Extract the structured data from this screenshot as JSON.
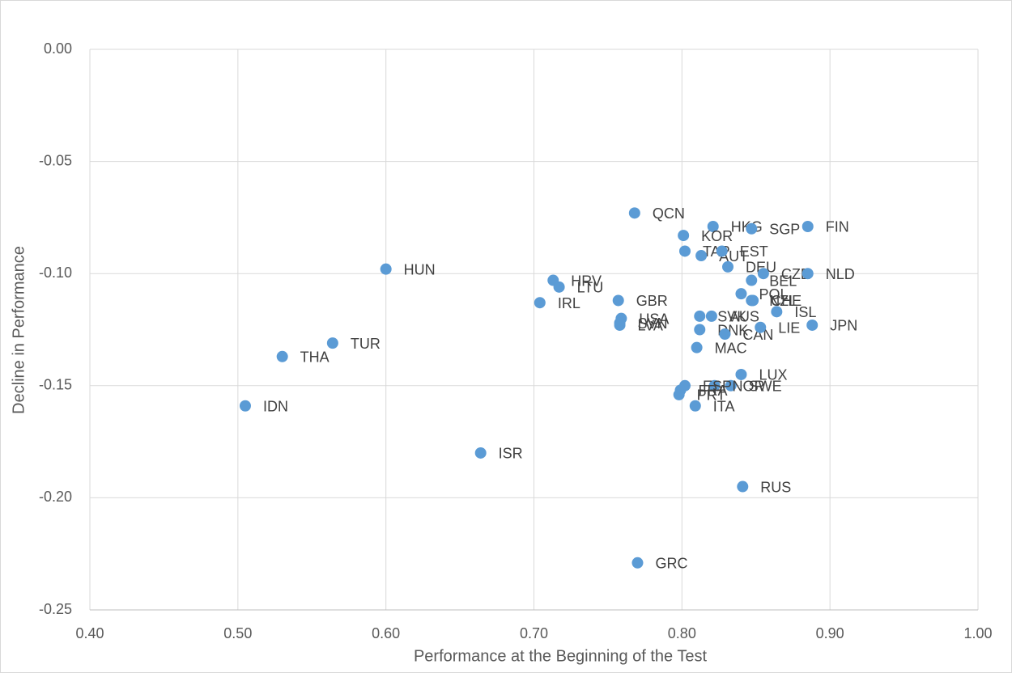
{
  "chart_data": {
    "type": "scatter",
    "x_label": "Performance at the Beginning of the Test",
    "y_label": "Decline in Performance",
    "color": "#5b9bd5",
    "grid": true,
    "xlim": [
      0.4,
      1.0
    ],
    "ylim": [
      -0.25,
      0.0
    ],
    "xticks": [
      {
        "value": 0.4,
        "label": "0.40"
      },
      {
        "value": 0.5,
        "label": "0.50"
      },
      {
        "value": 0.6,
        "label": "0.60"
      },
      {
        "value": 0.7,
        "label": "0.70"
      },
      {
        "value": 0.8,
        "label": "0.80"
      },
      {
        "value": 0.9,
        "label": "0.90"
      },
      {
        "value": 1.0,
        "label": "1.00"
      }
    ],
    "yticks": [
      {
        "value": 0.0,
        "label": "0.00"
      },
      {
        "value": -0.05,
        "label": "-0.05"
      },
      {
        "value": -0.1,
        "label": "-0.10"
      },
      {
        "value": -0.15,
        "label": "-0.15"
      },
      {
        "value": -0.2,
        "label": "-0.20"
      },
      {
        "value": -0.25,
        "label": "-0.25"
      }
    ],
    "labels": [
      "QCN",
      "HKG",
      "SGP",
      "FIN",
      "KOR",
      "TAP",
      "AUT",
      "EST",
      "DEU",
      "CZE",
      "NLD",
      "BEL",
      "HUN",
      "HRV",
      "LTU",
      "GBR",
      "USA",
      "SVN",
      "LVA",
      "IRL",
      "POL",
      "NZL",
      "CHE",
      "ISL",
      "JPN",
      "AUS",
      "SVK",
      "DNK",
      "MAC",
      "CAN",
      "LIE",
      "LUX",
      "SWE",
      "NOR",
      "ESP",
      "FRA",
      "PRT",
      "ITA",
      "THA",
      "TUR",
      "IDN",
      "ISR",
      "RUS",
      "GRC"
    ],
    "x": [
      0.768,
      0.821,
      0.847,
      0.885,
      0.801,
      0.802,
      0.813,
      0.827,
      0.831,
      0.855,
      0.885,
      0.847,
      0.6,
      0.713,
      0.717,
      0.757,
      0.759,
      0.758,
      0.758,
      0.704,
      0.84,
      0.847,
      0.848,
      0.864,
      0.888,
      0.82,
      0.812,
      0.812,
      0.81,
      0.829,
      0.853,
      0.84,
      0.833,
      0.822,
      0.802,
      0.799,
      0.798,
      0.809,
      0.53,
      0.564,
      0.505,
      0.664,
      0.841,
      0.77
    ],
    "values": [
      -0.073,
      -0.079,
      -0.08,
      -0.079,
      -0.083,
      -0.09,
      -0.092,
      -0.09,
      -0.097,
      -0.1,
      -0.1,
      -0.103,
      -0.098,
      -0.103,
      -0.106,
      -0.112,
      -0.12,
      -0.122,
      -0.123,
      -0.113,
      -0.109,
      -0.112,
      -0.112,
      -0.117,
      -0.123,
      -0.119,
      -0.119,
      -0.125,
      -0.133,
      -0.127,
      -0.124,
      -0.145,
      -0.15,
      -0.15,
      -0.15,
      -0.152,
      -0.154,
      -0.159,
      -0.137,
      -0.131,
      -0.159,
      -0.18,
      -0.195,
      -0.229
    ]
  }
}
